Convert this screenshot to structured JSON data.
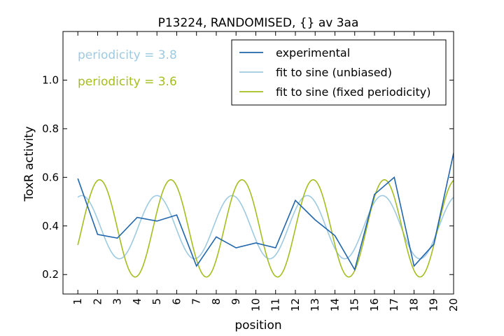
{
  "chart_data": {
    "type": "line",
    "title": "P13224, RANDOMISED, {} av 3aa",
    "xlabel": "position",
    "ylabel": "ToxR activity",
    "xlim": [
      0.25,
      20
    ],
    "ylim": [
      0.12,
      1.2
    ],
    "x_ticks": [
      1,
      2,
      3,
      4,
      5,
      6,
      7,
      8,
      9,
      10,
      11,
      12,
      13,
      14,
      15,
      16,
      17,
      18,
      19,
      20
    ],
    "x_tick_labels": [
      "1",
      "2",
      "3",
      "4",
      "5",
      "6",
      "7",
      "8",
      "9",
      "10",
      "11",
      "12",
      "13",
      "14",
      "15",
      "16",
      "17",
      "18",
      "19",
      "20"
    ],
    "y_ticks": [
      0.2,
      0.4,
      0.6,
      0.8,
      1.0
    ],
    "y_tick_labels": [
      "0.2",
      "0.4",
      "0.6",
      "0.8",
      "1.0"
    ],
    "grid": false,
    "legend_position": "top-right",
    "series": [
      {
        "name": "experimental",
        "color": "#2166ac",
        "kind": "data",
        "x": [
          1,
          2,
          3,
          4,
          5,
          6,
          7,
          8,
          9,
          10,
          11,
          12,
          13,
          14,
          15,
          16,
          17,
          18,
          19,
          20
        ],
        "y": [
          0.595,
          0.365,
          0.35,
          0.435,
          0.42,
          0.445,
          0.235,
          0.355,
          0.31,
          0.33,
          0.31,
          0.505,
          0.425,
          0.36,
          0.22,
          0.53,
          0.6,
          0.235,
          0.325,
          0.7
        ]
      },
      {
        "name": "fit to sine (unbiased)",
        "color": "#9ecae1",
        "kind": "sine",
        "period": 3.8,
        "mean": 0.395,
        "amplitude": 0.13,
        "peak_x": 5.0,
        "x_range": [
          1,
          20
        ]
      },
      {
        "name": "fit to sine (fixed periodicity)",
        "color": "#a6bd1f",
        "kind": "sine",
        "period": 3.6,
        "mean": 0.39,
        "amplitude": 0.2,
        "peak_x": 5.7,
        "x_range": [
          1,
          20
        ]
      }
    ],
    "annotations": [
      {
        "text": "periodicity = 3.8",
        "color": "#9ecae1"
      },
      {
        "text": "periodicity = 3.6",
        "color": "#a6bd1f"
      }
    ]
  }
}
